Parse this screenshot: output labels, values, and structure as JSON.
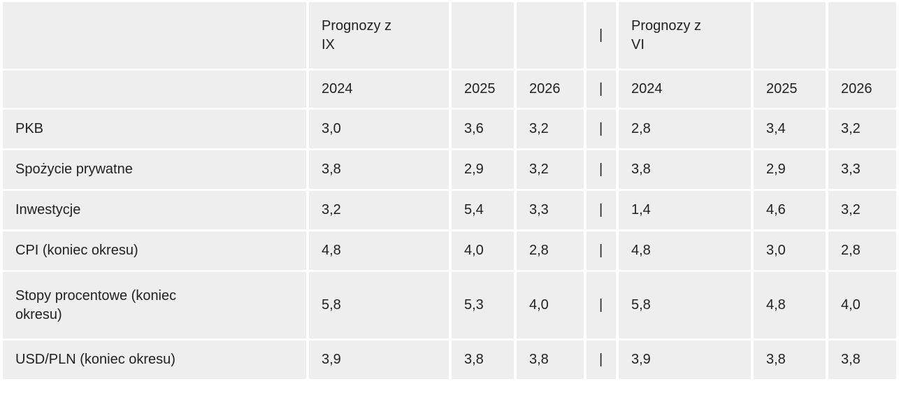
{
  "table": {
    "group_header": {
      "label": "",
      "g1": "Prognozy z\nIX",
      "sep": "|",
      "g2": "Prognozy z\nVI"
    },
    "year_header": {
      "label": "",
      "ix": [
        "2024",
        "2025",
        "2026"
      ],
      "sep": "|",
      "vi": [
        "2024",
        "2025",
        "2026"
      ]
    },
    "rows": [
      {
        "label": "PKB",
        "ix": [
          "3,0",
          "3,6",
          "3,2"
        ],
        "sep": "|",
        "vi": [
          "2,8",
          "3,4",
          "3,2"
        ]
      },
      {
        "label": "Spożycie prywatne",
        "ix": [
          "3,8",
          "2,9",
          "3,2"
        ],
        "sep": "|",
        "vi": [
          "3,8",
          "2,9",
          "3,3"
        ]
      },
      {
        "label": "Inwestycje",
        "ix": [
          "3,2",
          "5,4",
          "3,3"
        ],
        "sep": "|",
        "vi": [
          "1,4",
          "4,6",
          "3,2"
        ]
      },
      {
        "label": "CPI (koniec okresu)",
        "ix": [
          "4,8",
          "4,0",
          "2,8"
        ],
        "sep": "|",
        "vi": [
          "4,8",
          "3,0",
          "2,8"
        ]
      },
      {
        "label": "Stopy procentowe (koniec\nokresu)",
        "ix": [
          "5,8",
          "5,3",
          "4,0"
        ],
        "sep": "|",
        "vi": [
          "5,8",
          "4,8",
          "4,0"
        ]
      },
      {
        "label": "USD/PLN (koniec okresu)",
        "ix": [
          "3,9",
          "3,8",
          "3,8"
        ],
        "sep": "|",
        "vi": [
          "3,9",
          "3,8",
          "3,8"
        ]
      }
    ]
  },
  "colors": {
    "cell_background": "#eeeeee",
    "gutter": "#ffffff",
    "text": "#1f2022"
  },
  "chart_data": {
    "type": "table",
    "title": "",
    "column_groups": [
      "Prognozy z IX",
      "Prognozy z VI"
    ],
    "years": [
      "2024",
      "2025",
      "2026"
    ],
    "separator_glyph": "|",
    "rows": [
      {
        "indicator": "PKB",
        "prognozy_ix": [
          3.0,
          3.6,
          3.2
        ],
        "prognozy_vi": [
          2.8,
          3.4,
          3.2
        ]
      },
      {
        "indicator": "Spożycie prywatne",
        "prognozy_ix": [
          3.8,
          2.9,
          3.2
        ],
        "prognozy_vi": [
          3.8,
          2.9,
          3.3
        ]
      },
      {
        "indicator": "Inwestycje",
        "prognozy_ix": [
          3.2,
          5.4,
          3.3
        ],
        "prognozy_vi": [
          1.4,
          4.6,
          3.2
        ]
      },
      {
        "indicator": "CPI (koniec okresu)",
        "prognozy_ix": [
          4.8,
          4.0,
          2.8
        ],
        "prognozy_vi": [
          4.8,
          3.0,
          2.8
        ]
      },
      {
        "indicator": "Stopy procentowe (koniec okresu)",
        "prognozy_ix": [
          5.8,
          5.3,
          4.0
        ],
        "prognozy_vi": [
          5.8,
          4.8,
          4.0
        ]
      },
      {
        "indicator": "USD/PLN (koniec okresu)",
        "prognozy_ix": [
          3.9,
          3.8,
          3.8
        ],
        "prognozy_vi": [
          3.9,
          3.8,
          3.8
        ]
      }
    ]
  }
}
